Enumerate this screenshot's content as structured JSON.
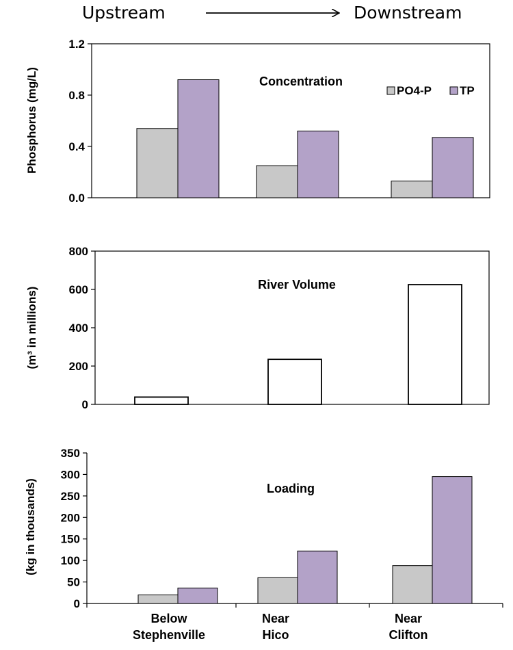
{
  "header": {
    "upstream": "Upstream",
    "downstream": "Downstream"
  },
  "categories": [
    [
      "Below",
      "Stephenville"
    ],
    [
      "Near",
      "Hico"
    ],
    [
      "Near",
      "Clifton"
    ]
  ],
  "colors": {
    "po4": "#c8c8c8",
    "tp": "#b3a2c8",
    "volume": "#ffffff",
    "stroke": "#000000"
  },
  "chart_data": [
    {
      "type": "bar",
      "title": "Concentration",
      "ylabel": "Phosphorus (mg/L)",
      "ylim": [
        0,
        1.2
      ],
      "yticks": [
        "0.0",
        "0.4",
        "0.8",
        "1.2"
      ],
      "legend": "top-right",
      "series": [
        {
          "name": "PO4-P",
          "values": [
            0.54,
            0.25,
            0.13
          ]
        },
        {
          "name": "TP",
          "values": [
            0.92,
            0.52,
            0.47
          ]
        }
      ]
    },
    {
      "type": "bar",
      "title": "River Volume",
      "ylabel": "(m³ in millions)",
      "ylim": [
        0,
        800
      ],
      "yticks": [
        "0",
        "200",
        "400",
        "600",
        "800"
      ],
      "series": [
        {
          "values": [
            38,
            235,
            625
          ]
        }
      ]
    },
    {
      "type": "bar",
      "title": "Loading",
      "ylabel": "(kg in thousands)",
      "ylim": [
        0,
        350
      ],
      "yticks": [
        "0",
        "50",
        "100",
        "150",
        "200",
        "250",
        "300",
        "350"
      ],
      "series": [
        {
          "name": "PO4-P",
          "values": [
            20,
            60,
            88
          ]
        },
        {
          "name": "TP",
          "values": [
            36,
            122,
            295
          ]
        }
      ]
    }
  ]
}
